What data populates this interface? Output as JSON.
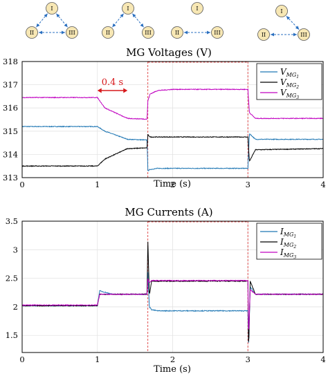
{
  "topology": {
    "node_labels": [
      "I",
      "II",
      "III"
    ],
    "configs": [
      {
        "links": [
          [
            "I",
            "II"
          ],
          [
            "I",
            "III"
          ],
          [
            "II",
            "III"
          ]
        ]
      },
      {
        "links": [
          [
            "I",
            "II"
          ],
          [
            "I",
            "III"
          ]
        ]
      },
      {
        "links": [
          [
            "II",
            "III"
          ]
        ]
      },
      {
        "links": [
          [
            "I",
            "III"
          ],
          [
            "II",
            "III"
          ]
        ]
      }
    ]
  },
  "annotation": {
    "text": "0.4 s",
    "color": "#d7191c",
    "from": 1.0,
    "to": 1.4
  },
  "switch_times": [
    1.67,
    3.0
  ],
  "colors": {
    "mg1": "#1f77b4",
    "mg2": "#000000",
    "mg3": "#c000c0",
    "marker": "#e05050"
  },
  "chart_data": [
    {
      "type": "line",
      "title": "MG Voltages (V)",
      "xlabel": "Time (s)",
      "ylabel": "",
      "xlim": [
        0,
        4
      ],
      "ylim": [
        313,
        318
      ],
      "xticks": [
        0,
        1,
        2,
        3,
        4
      ],
      "yticks": [
        313,
        314,
        315,
        316,
        317,
        318
      ],
      "grid": true,
      "legend": "top-right",
      "series": [
        {
          "name": "V",
          "sub": "MG1",
          "color_key": "mg1",
          "x": [
            0,
            1.0,
            1.1,
            1.4,
            1.66,
            1.67,
            1.7,
            1.8,
            2.0,
            3.0,
            3.02,
            3.1,
            4.0
          ],
          "y": [
            315.2,
            315.2,
            315.0,
            314.65,
            314.62,
            313.3,
            313.35,
            313.4,
            313.4,
            313.4,
            314.9,
            314.65,
            314.65
          ]
        },
        {
          "name": "V",
          "sub": "MG2",
          "color_key": "mg2",
          "x": [
            0,
            1.0,
            1.1,
            1.4,
            1.66,
            1.67,
            1.7,
            1.8,
            2.0,
            3.0,
            3.02,
            3.1,
            4.0
          ],
          "y": [
            313.5,
            313.5,
            313.8,
            314.25,
            314.28,
            314.85,
            314.75,
            314.75,
            314.75,
            314.75,
            313.7,
            314.2,
            314.25
          ]
        },
        {
          "name": "V",
          "sub": "MG3",
          "color_key": "mg3",
          "x": [
            0,
            1.0,
            1.1,
            1.4,
            1.66,
            1.67,
            1.7,
            1.8,
            2.0,
            3.0,
            3.02,
            3.1,
            4.0
          ],
          "y": [
            316.45,
            316.45,
            316.0,
            315.55,
            315.52,
            316.3,
            316.6,
            316.75,
            316.8,
            316.8,
            315.8,
            315.55,
            315.55
          ]
        }
      ]
    },
    {
      "type": "line",
      "title": "MG Currents (A)",
      "xlabel": "Time (s)",
      "ylabel": "",
      "xlim": [
        0,
        4
      ],
      "ylim": [
        1.2,
        3.5
      ],
      "xticks": [
        0,
        1,
        2,
        3,
        4
      ],
      "yticks": [
        1.5,
        2,
        2.5,
        3,
        3.5
      ],
      "grid": true,
      "legend": "top-right",
      "series": [
        {
          "name": "I",
          "sub": "MG1",
          "color_key": "mg1",
          "x": [
            0,
            1.0,
            1.03,
            1.2,
            1.66,
            1.67,
            1.69,
            1.72,
            1.8,
            3.0,
            3.01,
            3.03,
            3.1,
            4.0
          ],
          "y": [
            2.02,
            2.02,
            2.28,
            2.22,
            2.22,
            2.65,
            2.0,
            1.95,
            1.93,
            1.93,
            1.3,
            2.35,
            2.22,
            2.22
          ]
        },
        {
          "name": "I",
          "sub": "MG2",
          "color_key": "mg2",
          "x": [
            0,
            1.0,
            1.03,
            1.2,
            1.66,
            1.67,
            1.69,
            1.72,
            1.8,
            3.0,
            3.01,
            3.03,
            3.1,
            4.0
          ],
          "y": [
            2.02,
            2.02,
            2.22,
            2.22,
            2.22,
            3.2,
            2.2,
            2.45,
            2.45,
            2.45,
            1.25,
            2.45,
            2.22,
            2.22
          ]
        },
        {
          "name": "I",
          "sub": "MG3",
          "color_key": "mg3",
          "x": [
            0,
            1.0,
            1.03,
            1.2,
            1.66,
            1.67,
            1.69,
            1.72,
            1.8,
            3.0,
            3.01,
            3.03,
            3.1,
            4.0
          ],
          "y": [
            2.03,
            2.03,
            2.22,
            2.22,
            2.22,
            2.5,
            2.42,
            2.46,
            2.46,
            2.46,
            1.5,
            2.3,
            2.22,
            2.22
          ]
        }
      ]
    }
  ]
}
